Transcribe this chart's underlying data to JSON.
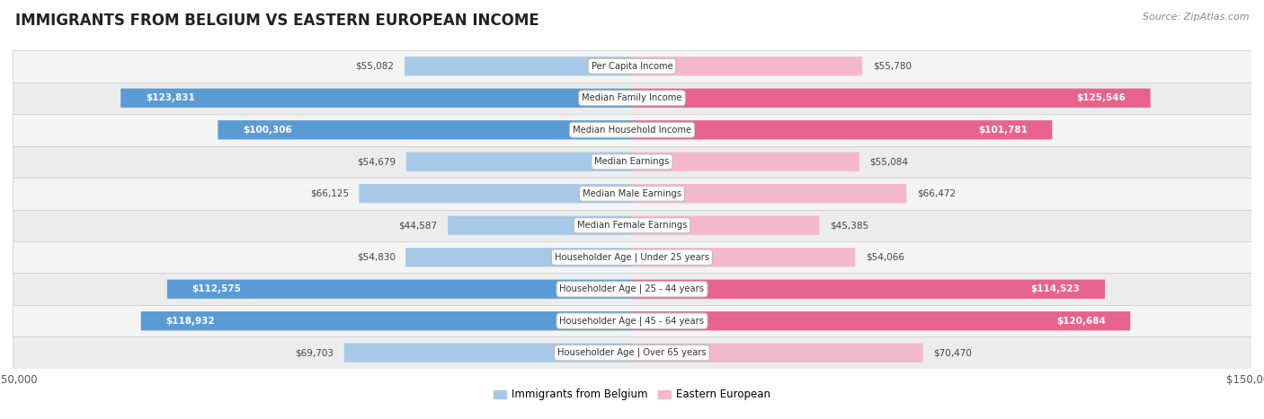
{
  "title": "IMMIGRANTS FROM BELGIUM VS EASTERN EUROPEAN INCOME",
  "source": "Source: ZipAtlas.com",
  "categories": [
    "Per Capita Income",
    "Median Family Income",
    "Median Household Income",
    "Median Earnings",
    "Median Male Earnings",
    "Median Female Earnings",
    "Householder Age | Under 25 years",
    "Householder Age | 25 - 44 years",
    "Householder Age | 45 - 64 years",
    "Householder Age | Over 65 years"
  ],
  "belgium_values": [
    55082,
    123831,
    100306,
    54679,
    66125,
    44587,
    54830,
    112575,
    118932,
    69703
  ],
  "eastern_values": [
    55780,
    125546,
    101781,
    55084,
    66472,
    45385,
    54066,
    114523,
    120684,
    70470
  ],
  "belgium_labels": [
    "$55,082",
    "$123,831",
    "$100,306",
    "$54,679",
    "$66,125",
    "$44,587",
    "$54,830",
    "$112,575",
    "$118,932",
    "$69,703"
  ],
  "eastern_labels": [
    "$55,780",
    "$125,546",
    "$101,781",
    "$55,084",
    "$66,472",
    "$45,385",
    "$54,066",
    "$114,523",
    "$120,684",
    "$70,470"
  ],
  "belgium_color_light": "#a8c8e8",
  "belgium_color_dark": "#5b9bd5",
  "eastern_color_light": "#f4b8cc",
  "eastern_color_dark": "#e8638c",
  "label_threshold": 80000,
  "max_value": 150000,
  "legend_belgium": "Immigrants from Belgium",
  "legend_eastern": "Eastern European",
  "row_colors": [
    "#f2f2f2",
    "#e8e8e8"
  ],
  "bar_height": 0.6
}
